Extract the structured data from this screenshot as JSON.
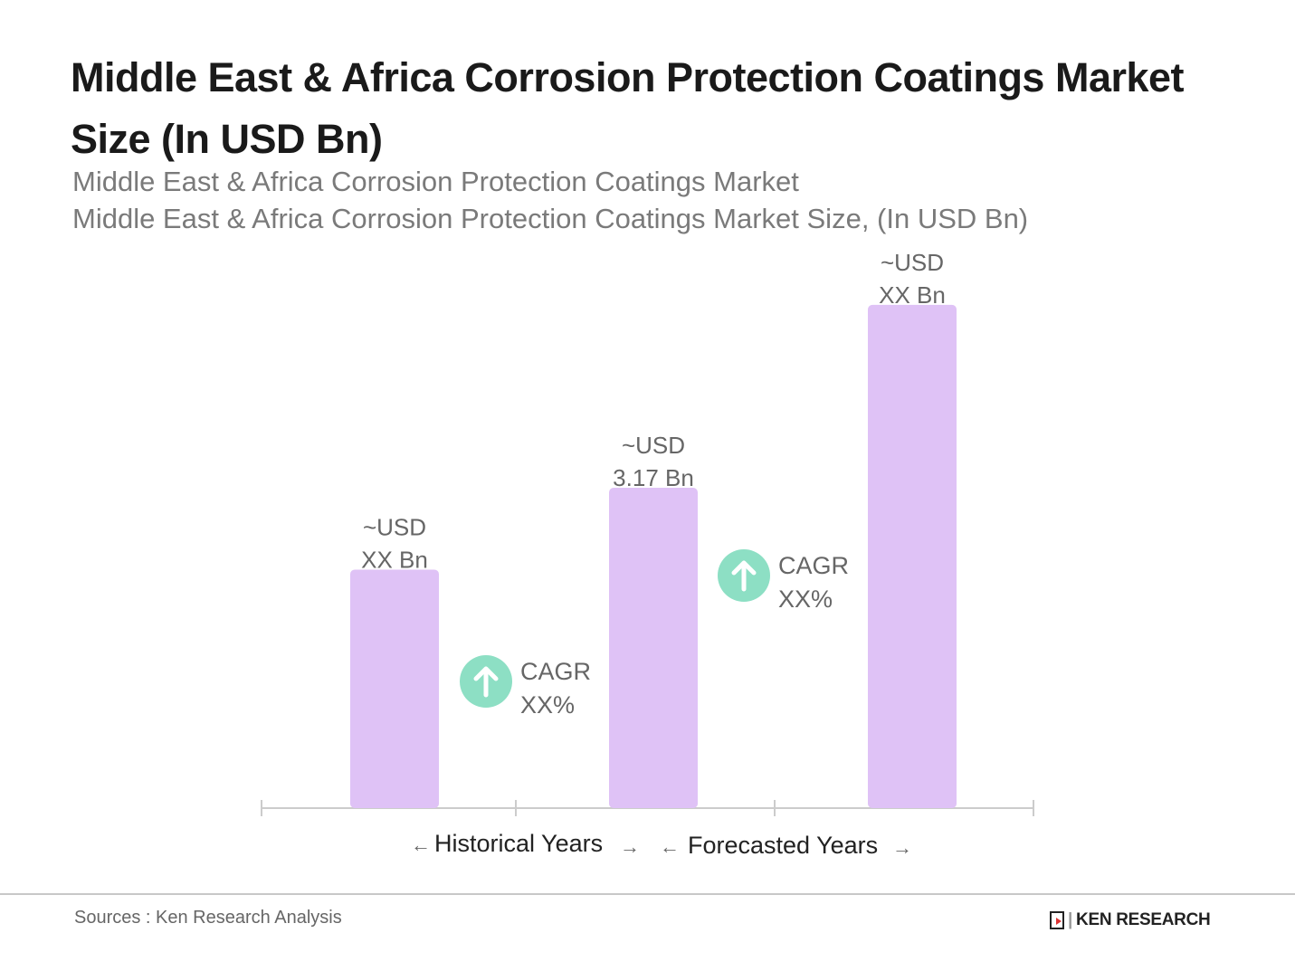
{
  "chart_data": {
    "type": "bar",
    "title": "Middle East & Africa Corrosion Protection Coatings Market Size (In USD Bn)",
    "subtitle_1": "Middle East & Africa Corrosion Protection Coatings Market",
    "subtitle_2": "Middle East & Africa Corrosion Protection Coatings Market Size, (In USD Bn)",
    "categories": [
      "",
      "",
      ""
    ],
    "values": [
      2.36,
      3.17,
      4.98
    ],
    "data_labels": [
      {
        "line1": "~USD",
        "line2": "XX Bn"
      },
      {
        "line1": "~USD",
        "line2": "3.17 Bn"
      },
      {
        "line1": "~USD",
        "line2": "XX Bn"
      }
    ],
    "annotations": [
      {
        "line1": "CAGR",
        "line2": "XX%",
        "icon": "arrow-up-circle-icon"
      },
      {
        "line1": "CAGR",
        "line2": "XX%",
        "icon": "arrow-up-circle-icon"
      }
    ],
    "period_labels": {
      "historical": "Historical Years",
      "forecast": "Forecasted Years"
    },
    "ylim": [
      0,
      5.5
    ],
    "grid": false,
    "colors": {
      "bar": "#dfc2f6",
      "cagr_icon": "#8ddfc4",
      "axis": "#cccccc"
    }
  },
  "footer": {
    "source": "Sources : Ken Research Analysis",
    "logo": "KEN RESEARCH"
  }
}
